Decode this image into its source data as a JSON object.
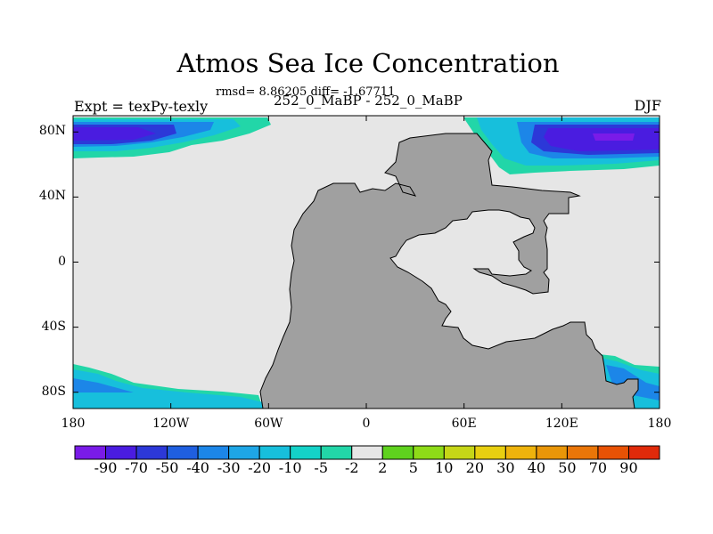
{
  "figure": {
    "title": "Atmos Sea Ice Concentration",
    "stats": "rmsd= 8.86205 diff= -1.67711",
    "expt_label": "Expt = texPy-texly",
    "subtitle": "252_0_MaBP - 252_0_MaBP",
    "season": "DJF"
  },
  "map": {
    "lon_range": [
      -180,
      180
    ],
    "lat_range": [
      -90,
      90
    ],
    "lat_ticks": [
      {
        "value": 80,
        "label": "80N"
      },
      {
        "value": 40,
        "label": "40N"
      },
      {
        "value": 0,
        "label": "0"
      },
      {
        "value": -40,
        "label": "40S"
      },
      {
        "value": -80,
        "label": "80S"
      }
    ],
    "lon_ticks": [
      {
        "value": -180,
        "label": "180"
      },
      {
        "value": -120,
        "label": "120W"
      },
      {
        "value": -60,
        "label": "60W"
      },
      {
        "value": 0,
        "label": "0"
      },
      {
        "value": 60,
        "label": "60E"
      },
      {
        "value": 120,
        "label": "120E"
      },
      {
        "value": 180,
        "label": "180"
      }
    ],
    "colors": {
      "land": "#a0a0a0",
      "ocean_zero": "#e6e6e6"
    }
  },
  "colorbar": {
    "labels": [
      "-90",
      "-70",
      "-50",
      "-40",
      "-30",
      "-20",
      "-10",
      "-5",
      "-2",
      "2",
      "5",
      "10",
      "20",
      "30",
      "40",
      "50",
      "70",
      "90"
    ],
    "colors": [
      "#7a1be8",
      "#4a1ce0",
      "#2c38d8",
      "#1f5fe0",
      "#1c86e8",
      "#1ea6e6",
      "#17bfdc",
      "#14d2c8",
      "#22d6a8",
      "#e6e6e6",
      "#5fd21e",
      "#8edb18",
      "#c6d617",
      "#e8cf10",
      "#eeb30c",
      "#e99608",
      "#ea7608",
      "#e85205",
      "#e02a0a"
    ]
  }
}
